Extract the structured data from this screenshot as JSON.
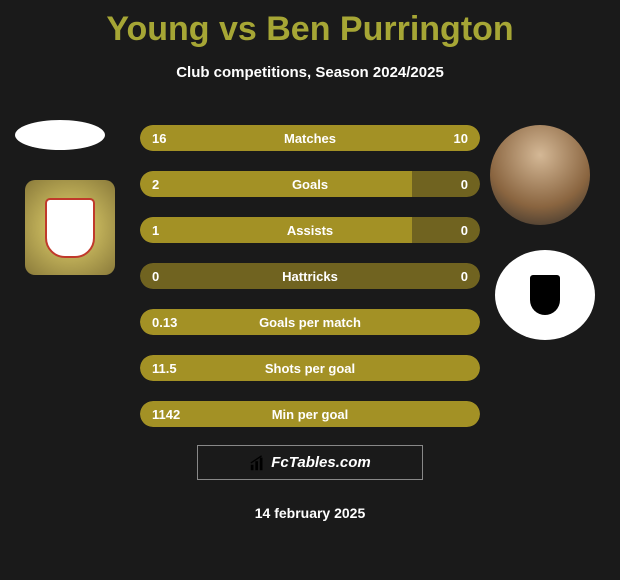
{
  "title": "Young vs Ben Purrington",
  "subtitle": "Club competitions, Season 2024/2025",
  "colors": {
    "background": "#1a1a1a",
    "title_color": "#a6a635",
    "text_color": "#ffffff",
    "bar_fill": "#a39125",
    "bar_bg": "#706320"
  },
  "stats": [
    {
      "label": "Matches",
      "left_val": "16",
      "right_val": "10",
      "left_pct": 62,
      "right_pct": 38
    },
    {
      "label": "Goals",
      "left_val": "2",
      "right_val": "0",
      "left_pct": 80,
      "right_pct": 0
    },
    {
      "label": "Assists",
      "left_val": "1",
      "right_val": "0",
      "left_pct": 80,
      "right_pct": 0
    },
    {
      "label": "Hattricks",
      "left_val": "0",
      "right_val": "0",
      "left_pct": 0,
      "right_pct": 0
    },
    {
      "label": "Goals per match",
      "left_val": "0.13",
      "right_val": "",
      "left_pct": 100,
      "right_pct": 0
    },
    {
      "label": "Shots per goal",
      "left_val": "11.5",
      "right_val": "",
      "left_pct": 100,
      "right_pct": 0
    },
    {
      "label": "Min per goal",
      "left_val": "1142",
      "right_val": "",
      "left_pct": 100,
      "right_pct": 0
    }
  ],
  "footer_brand": "FcTables.com",
  "footer_date": "14 february 2025"
}
